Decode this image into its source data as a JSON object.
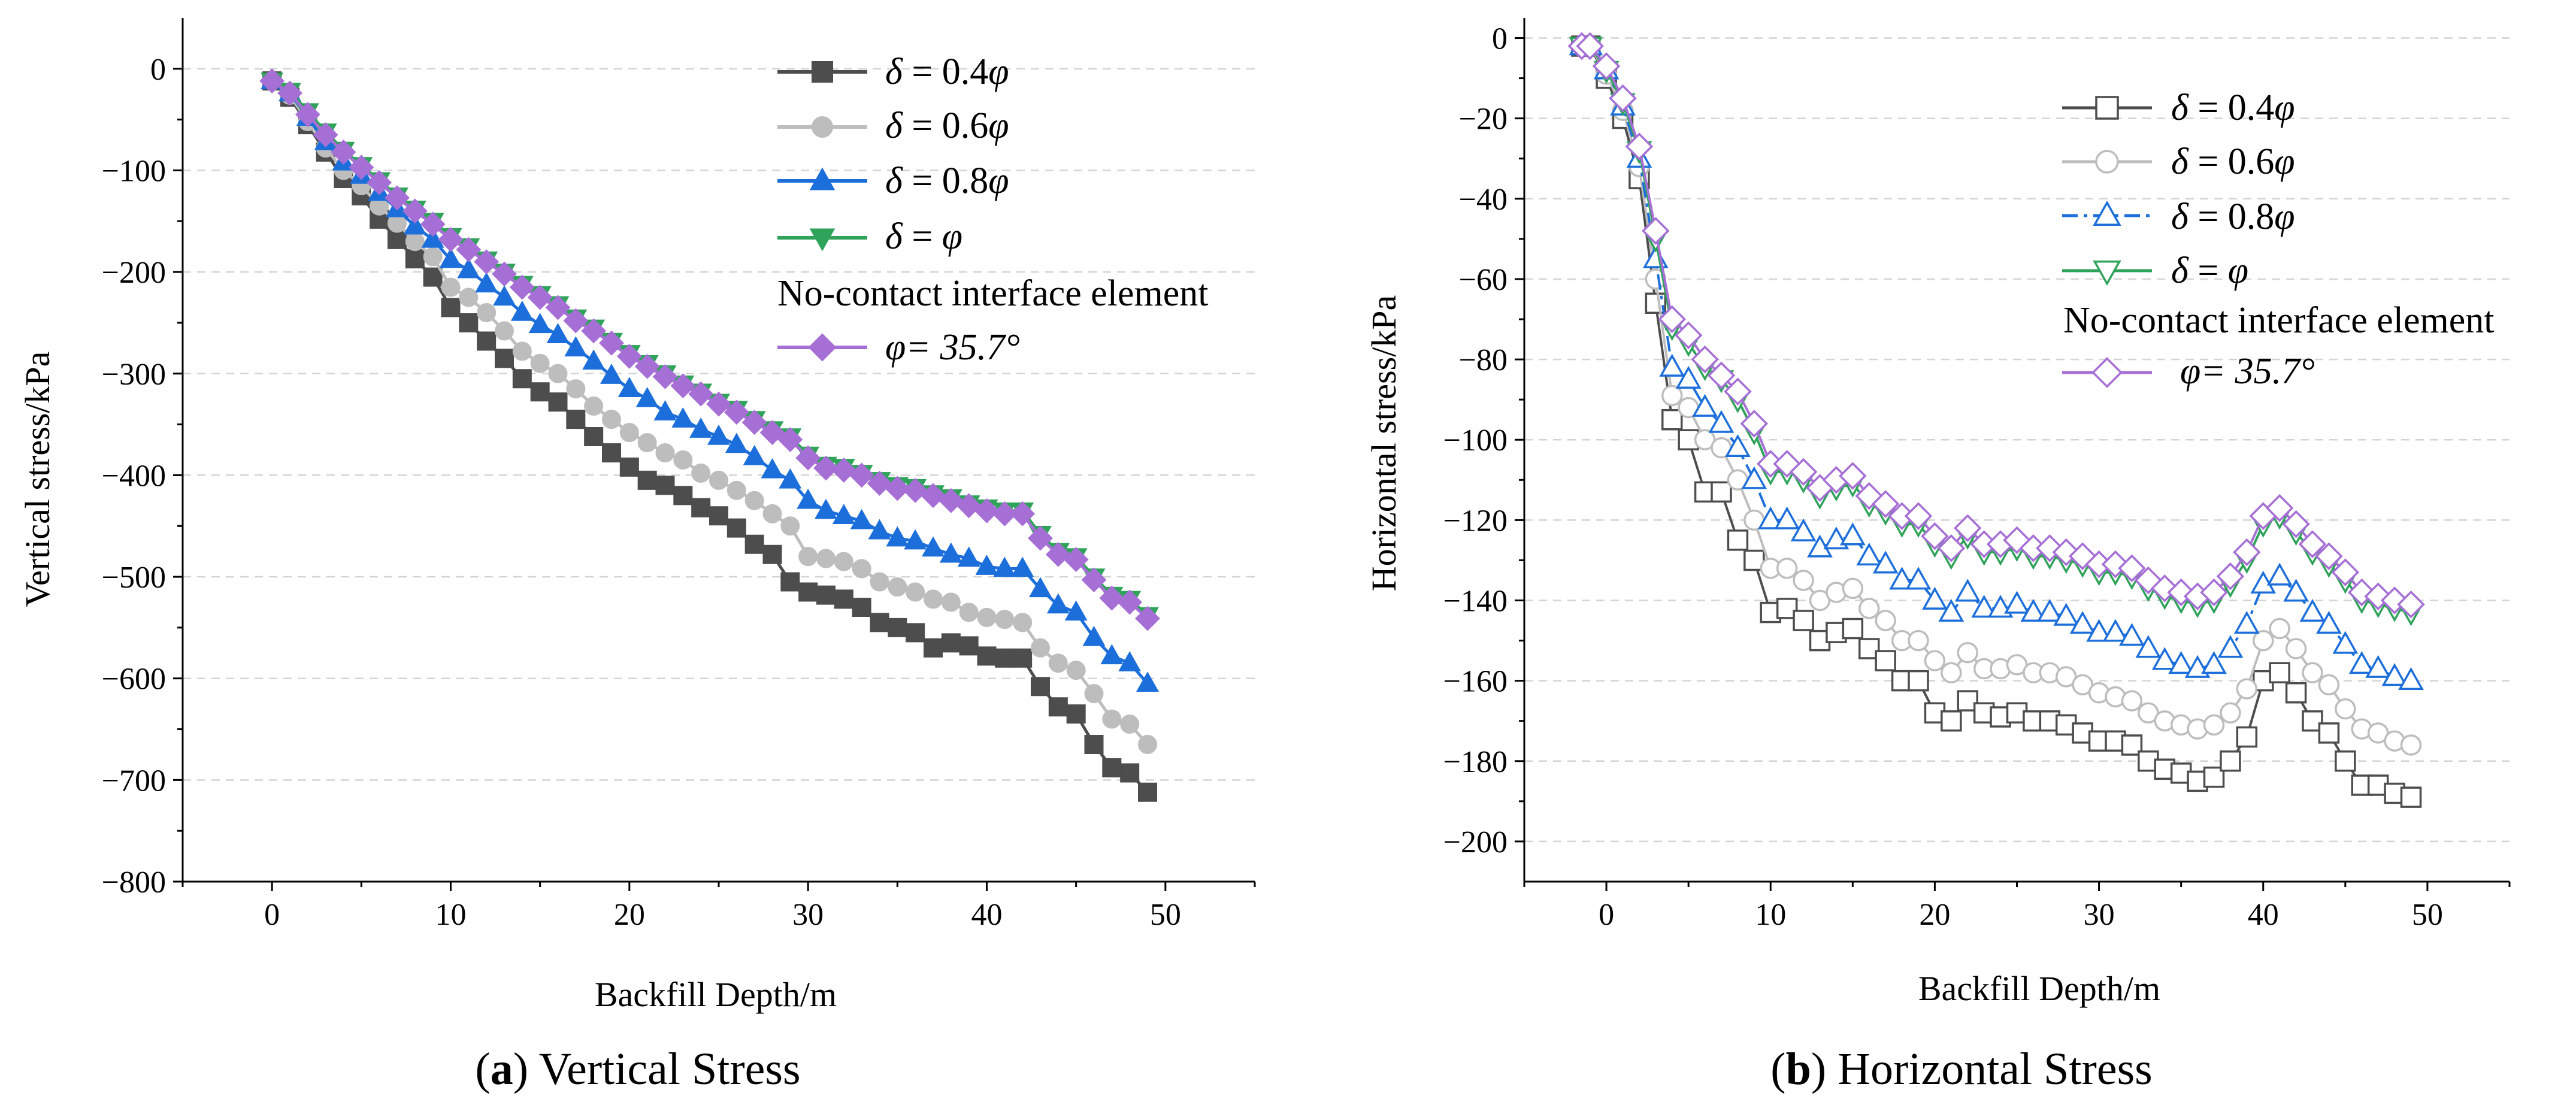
{
  "figure": {
    "caption_a_open": "(",
    "caption_a_letter": "a",
    "caption_a_rest": ") Vertical Stress",
    "caption_b_open": "(",
    "caption_b_letter": "b",
    "caption_b_rest": ") Horizontal Stress"
  },
  "legend": {
    "s04_sym": "δ",
    "s04_mid": " = 0.4",
    "s04_end": "φ",
    "s06_sym": "δ",
    "s06_mid": " = 0.6",
    "s06_end": "φ",
    "s08_sym": "δ",
    "s08_mid": " = 0.8",
    "s08_end": "φ",
    "s10_sym": "δ",
    "s10_mid": " = ",
    "s10_end": "φ",
    "no_contact_title": "No-contact interface element",
    "nc_label": "φ= 35.7°"
  },
  "chart_data": [
    {
      "type": "line",
      "title": "(a) Vertical Stress",
      "xlabel": "Backfill Depth/m",
      "ylabel": "Vertical stress/kPa",
      "xlim": [
        -5,
        55
      ],
      "ylim": [
        -800,
        50
      ],
      "xticks": [
        0,
        10,
        20,
        30,
        40,
        50
      ],
      "yticks": [
        0,
        -100,
        -200,
        -300,
        -400,
        -500,
        -600,
        -700,
        -800
      ],
      "grid": "horizontal dashed",
      "legend_position": "top-right",
      "x": [
        0,
        1,
        2,
        3,
        4,
        5,
        6,
        7,
        8,
        9,
        10,
        11,
        12,
        13,
        14,
        15,
        16,
        17,
        18,
        19,
        20,
        21,
        22,
        23,
        24,
        25,
        26,
        27,
        28,
        29,
        30,
        31,
        32,
        33,
        34,
        35,
        36,
        37,
        38,
        39,
        40,
        41,
        42,
        43,
        44,
        45,
        46,
        47,
        48,
        49
      ],
      "series": [
        {
          "name": "δ = 0.4φ",
          "color": "#4d4d4d",
          "marker": "square",
          "filled": true,
          "values": [
            -12,
            -28,
            -55,
            -82,
            -108,
            -125,
            -148,
            -168,
            -187,
            -205,
            -235,
            -250,
            -268,
            -285,
            -305,
            -318,
            -328,
            -345,
            -362,
            -378,
            -392,
            -405,
            -410,
            -420,
            -432,
            -440,
            -452,
            -468,
            -478,
            -505,
            -515,
            -518,
            -522,
            -530,
            -545,
            -550,
            -555,
            -570,
            -565,
            -568,
            -578,
            -580,
            -580,
            -608,
            -628,
            -635,
            -665,
            -688,
            -693,
            -712
          ]
        },
        {
          "name": "δ = 0.6φ",
          "color": "#bdbdbd",
          "marker": "circle",
          "filled": true,
          "values": [
            -12,
            -26,
            -52,
            -78,
            -100,
            -115,
            -135,
            -152,
            -170,
            -185,
            -215,
            -225,
            -240,
            -258,
            -278,
            -290,
            -300,
            -315,
            -332,
            -345,
            -358,
            -368,
            -378,
            -385,
            -398,
            -405,
            -415,
            -425,
            -438,
            -450,
            -480,
            -482,
            -485,
            -492,
            -505,
            -510,
            -515,
            -522,
            -525,
            -535,
            -540,
            -542,
            -545,
            -570,
            -585,
            -592,
            -615,
            -640,
            -645,
            -665
          ]
        },
        {
          "name": "δ = 0.8φ",
          "color": "#1c6fdb",
          "marker": "triangle-up",
          "filled": true,
          "values": [
            -12,
            -24,
            -48,
            -72,
            -92,
            -105,
            -122,
            -138,
            -155,
            -168,
            -188,
            -198,
            -212,
            -225,
            -240,
            -252,
            -262,
            -275,
            -288,
            -302,
            -315,
            -325,
            -338,
            -345,
            -355,
            -362,
            -370,
            -382,
            -395,
            -405,
            -425,
            -435,
            -440,
            -445,
            -455,
            -462,
            -465,
            -472,
            -478,
            -482,
            -490,
            -492,
            -492,
            -512,
            -528,
            -535,
            -560,
            -578,
            -585,
            -605
          ]
        },
        {
          "name": "δ = φ",
          "color": "#2fa35a",
          "marker": "triangle-down",
          "filled": true,
          "values": [
            -12,
            -22,
            -42,
            -62,
            -80,
            -95,
            -110,
            -125,
            -138,
            -150,
            -165,
            -175,
            -188,
            -200,
            -212,
            -222,
            -232,
            -245,
            -255,
            -268,
            -280,
            -290,
            -300,
            -310,
            -318,
            -328,
            -335,
            -345,
            -355,
            -362,
            -380,
            -390,
            -392,
            -398,
            -405,
            -410,
            -412,
            -418,
            -422,
            -428,
            -432,
            -435,
            -435,
            -458,
            -475,
            -480,
            -500,
            -518,
            -522,
            -538
          ]
        },
        {
          "name": "φ= 35.7°",
          "color": "#a66fd6",
          "marker": "diamond",
          "filled": true,
          "values": [
            -12,
            -24,
            -45,
            -65,
            -82,
            -97,
            -112,
            -127,
            -140,
            -153,
            -168,
            -178,
            -190,
            -202,
            -215,
            -225,
            -235,
            -248,
            -258,
            -270,
            -283,
            -293,
            -303,
            -312,
            -320,
            -330,
            -338,
            -348,
            -358,
            -365,
            -383,
            -393,
            -395,
            -400,
            -408,
            -413,
            -415,
            -420,
            -425,
            -430,
            -435,
            -438,
            -438,
            -462,
            -478,
            -483,
            -503,
            -521,
            -525,
            -541
          ]
        }
      ]
    },
    {
      "type": "line",
      "title": "(b) Horizontal Stress",
      "xlabel": "Backfill Depth/m",
      "ylabel": "Horizontal stress/kPa",
      "xlim": [
        -5,
        55
      ],
      "ylim": [
        -210,
        5
      ],
      "xticks": [
        0,
        10,
        20,
        30,
        40,
        50
      ],
      "yticks": [
        0,
        -20,
        -40,
        -60,
        -80,
        -100,
        -120,
        -140,
        -160,
        -180,
        -200
      ],
      "grid": "horizontal dashed",
      "legend_position": "top-right",
      "x": [
        -1.5,
        -1,
        0,
        1,
        2,
        3,
        4,
        5,
        6,
        7,
        8,
        9,
        10,
        11,
        12,
        13,
        14,
        15,
        16,
        17,
        18,
        19,
        20,
        21,
        22,
        23,
        24,
        25,
        26,
        27,
        28,
        29,
        30,
        31,
        32,
        33,
        34,
        35,
        36,
        37,
        38,
        39,
        40,
        41,
        42,
        43,
        44,
        45,
        46,
        47,
        48,
        49
      ],
      "series": [
        {
          "name": "δ = 0.4φ",
          "color": "#4d4d4d",
          "marker": "square",
          "filled": false,
          "values": [
            -2,
            -2,
            -10,
            -20,
            -35,
            -66,
            -95,
            -100,
            -113,
            -113,
            -125,
            -130,
            -143,
            -142,
            -145,
            -150,
            -148,
            -147,
            -152,
            -155,
            -160,
            -160,
            -168,
            -170,
            -165,
            -168,
            -169,
            -168,
            -170,
            -170,
            -171,
            -173,
            -175,
            -175,
            -176,
            -180,
            -182,
            -183,
            -185,
            -184,
            -180,
            -174,
            -160,
            -158,
            -163,
            -170,
            -173,
            -180,
            -186,
            -186,
            -188,
            -189
          ]
        },
        {
          "name": "δ = 0.6φ",
          "color": "#bdbdbd",
          "marker": "circle",
          "filled": false,
          "values": [
            -2,
            -2,
            -9,
            -18,
            -32,
            -60,
            -89,
            -92,
            -100,
            -102,
            -110,
            -120,
            -132,
            -132,
            -135,
            -140,
            -138,
            -137,
            -142,
            -145,
            -150,
            -150,
            -155,
            -158,
            -153,
            -157,
            -157,
            -156,
            -158,
            -158,
            -159,
            -161,
            -163,
            -164,
            -165,
            -168,
            -170,
            -171,
            -172,
            -171,
            -168,
            -162,
            -150,
            -147,
            -152,
            -158,
            -161,
            -167,
            -172,
            -173,
            -175,
            -176
          ]
        },
        {
          "name": "δ = 0.8φ",
          "color": "#1c6fdb",
          "marker": "triangle-up",
          "filled": false,
          "values": [
            -2,
            -2,
            -8,
            -17,
            -30,
            -55,
            -82,
            -85,
            -92,
            -96,
            -102,
            -110,
            -120,
            -120,
            -123,
            -127,
            -125,
            -124,
            -129,
            -131,
            -135,
            -135,
            -140,
            -143,
            -138,
            -142,
            -142,
            -141,
            -143,
            -143,
            -144,
            -146,
            -148,
            -148,
            -149,
            -152,
            -155,
            -156,
            -157,
            -156,
            -152,
            -146,
            -136,
            -134,
            -138,
            -143,
            -146,
            -151,
            -156,
            -157,
            -159,
            -160
          ]
        },
        {
          "name": "δ = φ",
          "color": "#2fa35a",
          "marker": "triangle-down",
          "filled": false,
          "values": [
            -2,
            -2,
            -8,
            -16,
            -28,
            -50,
            -72,
            -76,
            -82,
            -85,
            -90,
            -98,
            -108,
            -108,
            -110,
            -114,
            -112,
            -111,
            -116,
            -118,
            -121,
            -121,
            -126,
            -129,
            -124,
            -128,
            -128,
            -127,
            -129,
            -129,
            -130,
            -131,
            -133,
            -133,
            -134,
            -137,
            -139,
            -140,
            -141,
            -140,
            -136,
            -130,
            -121,
            -119,
            -123,
            -128,
            -131,
            -135,
            -140,
            -141,
            -142,
            -143
          ]
        },
        {
          "name": "φ= 35.7°",
          "color": "#a66fd6",
          "marker": "diamond",
          "filled": false,
          "values": [
            -2,
            -2,
            -7,
            -15,
            -27,
            -48,
            -70,
            -74,
            -80,
            -84,
            -88,
            -96,
            -106,
            -106,
            -108,
            -112,
            -110,
            -109,
            -114,
            -116,
            -119,
            -119,
            -124,
            -127,
            -122,
            -126,
            -126,
            -125,
            -127,
            -127,
            -128,
            -129,
            -131,
            -131,
            -132,
            -135,
            -137,
            -138,
            -139,
            -138,
            -134,
            -128,
            -119,
            -117,
            -121,
            -126,
            -129,
            -133,
            -138,
            -139,
            -140,
            -141
          ]
        }
      ]
    }
  ]
}
